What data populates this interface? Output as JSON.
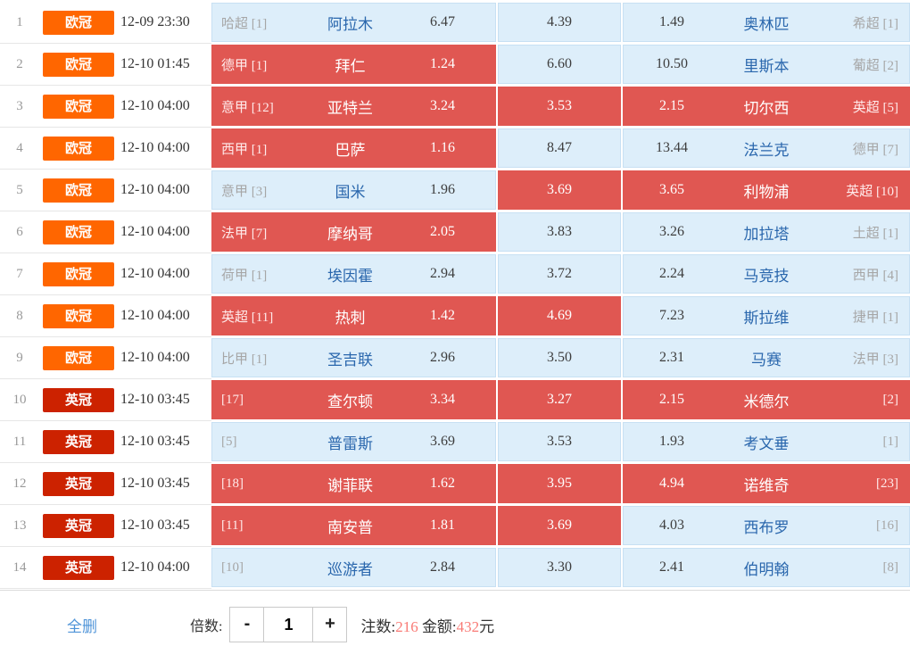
{
  "colors": {
    "selected_cell": "#e05752",
    "unselected_cell_bg": "#ddeefa",
    "unselected_cell_border": "#c7e0f3",
    "team_link_blue": "#2a67ad",
    "highlight_number_red": "#f97b76"
  },
  "badge_colors": {
    "欧冠": "#ff6600",
    "英冠": "#cc2200"
  },
  "rows": [
    {
      "no": "1",
      "league": "欧冠",
      "time": "12-09 23:30",
      "home_rank": "哈超 [1]",
      "home": "阿拉木",
      "win": "6.47",
      "draw": "4.39",
      "lose": "1.49",
      "away": "奥林匹",
      "away_rank": "希超 [1]",
      "selected": {
        "win": false,
        "draw": false,
        "lose": false
      }
    },
    {
      "no": "2",
      "league": "欧冠",
      "time": "12-10 01:45",
      "home_rank": "德甲 [1]",
      "home": "拜仁",
      "win": "1.24",
      "draw": "6.60",
      "lose": "10.50",
      "away": "里斯本",
      "away_rank": "葡超 [2]",
      "selected": {
        "win": true,
        "draw": false,
        "lose": false
      }
    },
    {
      "no": "3",
      "league": "欧冠",
      "time": "12-10 04:00",
      "home_rank": "意甲 [12]",
      "home": "亚特兰",
      "win": "3.24",
      "draw": "3.53",
      "lose": "2.15",
      "away": "切尔西",
      "away_rank": "英超 [5]",
      "selected": {
        "win": true,
        "draw": true,
        "lose": true
      }
    },
    {
      "no": "4",
      "league": "欧冠",
      "time": "12-10 04:00",
      "home_rank": "西甲 [1]",
      "home": "巴萨",
      "win": "1.16",
      "draw": "8.47",
      "lose": "13.44",
      "away": "法兰克",
      "away_rank": "德甲 [7]",
      "selected": {
        "win": true,
        "draw": false,
        "lose": false
      }
    },
    {
      "no": "5",
      "league": "欧冠",
      "time": "12-10 04:00",
      "home_rank": "意甲 [3]",
      "home": "国米",
      "win": "1.96",
      "draw": "3.69",
      "lose": "3.65",
      "away": "利物浦",
      "away_rank": "英超 [10]",
      "selected": {
        "win": false,
        "draw": true,
        "lose": true
      }
    },
    {
      "no": "6",
      "league": "欧冠",
      "time": "12-10 04:00",
      "home_rank": "法甲 [7]",
      "home": "摩纳哥",
      "win": "2.05",
      "draw": "3.83",
      "lose": "3.26",
      "away": "加拉塔",
      "away_rank": "土超 [1]",
      "selected": {
        "win": true,
        "draw": false,
        "lose": false
      }
    },
    {
      "no": "7",
      "league": "欧冠",
      "time": "12-10 04:00",
      "home_rank": "荷甲 [1]",
      "home": "埃因霍",
      "win": "2.94",
      "draw": "3.72",
      "lose": "2.24",
      "away": "马竞技",
      "away_rank": "西甲 [4]",
      "selected": {
        "win": false,
        "draw": false,
        "lose": false
      }
    },
    {
      "no": "8",
      "league": "欧冠",
      "time": "12-10 04:00",
      "home_rank": "英超 [11]",
      "home": "热刺",
      "win": "1.42",
      "draw": "4.69",
      "lose": "7.23",
      "away": "斯拉维",
      "away_rank": "捷甲 [1]",
      "selected": {
        "win": true,
        "draw": true,
        "lose": false
      }
    },
    {
      "no": "9",
      "league": "欧冠",
      "time": "12-10 04:00",
      "home_rank": "比甲 [1]",
      "home": "圣吉联",
      "win": "2.96",
      "draw": "3.50",
      "lose": "2.31",
      "away": "马赛",
      "away_rank": "法甲 [3]",
      "selected": {
        "win": false,
        "draw": false,
        "lose": false
      }
    },
    {
      "no": "10",
      "league": "英冠",
      "time": "12-10 03:45",
      "home_rank": "[17]",
      "home": "查尔顿",
      "win": "3.34",
      "draw": "3.27",
      "lose": "2.15",
      "away": "米德尔",
      "away_rank": "[2]",
      "selected": {
        "win": true,
        "draw": true,
        "lose": true
      }
    },
    {
      "no": "11",
      "league": "英冠",
      "time": "12-10 03:45",
      "home_rank": "[5]",
      "home": "普雷斯",
      "win": "3.69",
      "draw": "3.53",
      "lose": "1.93",
      "away": "考文垂",
      "away_rank": "[1]",
      "selected": {
        "win": false,
        "draw": false,
        "lose": false
      }
    },
    {
      "no": "12",
      "league": "英冠",
      "time": "12-10 03:45",
      "home_rank": "[18]",
      "home": "谢菲联",
      "win": "1.62",
      "draw": "3.95",
      "lose": "4.94",
      "away": "诺维奇",
      "away_rank": "[23]",
      "selected": {
        "win": true,
        "draw": true,
        "lose": true
      }
    },
    {
      "no": "13",
      "league": "英冠",
      "time": "12-10 03:45",
      "home_rank": "[11]",
      "home": "南安普",
      "win": "1.81",
      "draw": "3.69",
      "lose": "4.03",
      "away": "西布罗",
      "away_rank": "[16]",
      "selected": {
        "win": true,
        "draw": true,
        "lose": false
      }
    },
    {
      "no": "14",
      "league": "英冠",
      "time": "12-10 04:00",
      "home_rank": "[10]",
      "home": "巡游者",
      "win": "2.84",
      "draw": "3.30",
      "lose": "2.41",
      "away": "伯明翰",
      "away_rank": "[8]",
      "selected": {
        "win": false,
        "draw": false,
        "lose": false
      }
    }
  ],
  "footer": {
    "delete_all_label": "全删",
    "multiplier_label": "倍数:",
    "minus_label": "-",
    "multiplier_value": "1",
    "plus_label": "+",
    "bets_label": "注数:",
    "bets_value": "216",
    "amount_label": "金额:",
    "amount_value": "432",
    "amount_unit": "元"
  }
}
